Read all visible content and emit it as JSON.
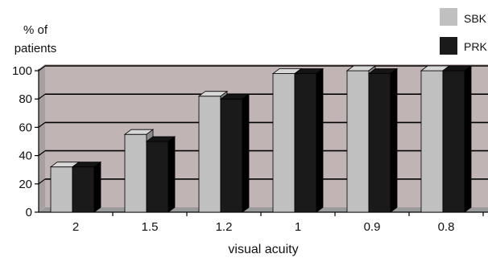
{
  "chart_data": {
    "type": "bar",
    "ylabel_line1": "% of",
    "ylabel_line2": "patients",
    "xlabel": "visual acuity",
    "categories": [
      "2",
      "1.5",
      "1.2",
      "1",
      "0.9",
      "0.8"
    ],
    "ylim": [
      0,
      100
    ],
    "yticks": [
      "0",
      "20",
      "40",
      "60",
      "80",
      "100"
    ],
    "grid": true,
    "legend_position": "top-right",
    "series": [
      {
        "name": "SBK",
        "values": [
          32,
          55,
          82,
          98,
          100,
          100
        ],
        "color": "#c0c0c0"
      },
      {
        "name": "PRK",
        "values": [
          32,
          50,
          80,
          98,
          98,
          100
        ],
        "color": "#1a1a1a"
      }
    ],
    "colors": {
      "plot_wall": "#c0b4b4",
      "floor": "#9a9a9a",
      "gridline": "#000000"
    }
  }
}
